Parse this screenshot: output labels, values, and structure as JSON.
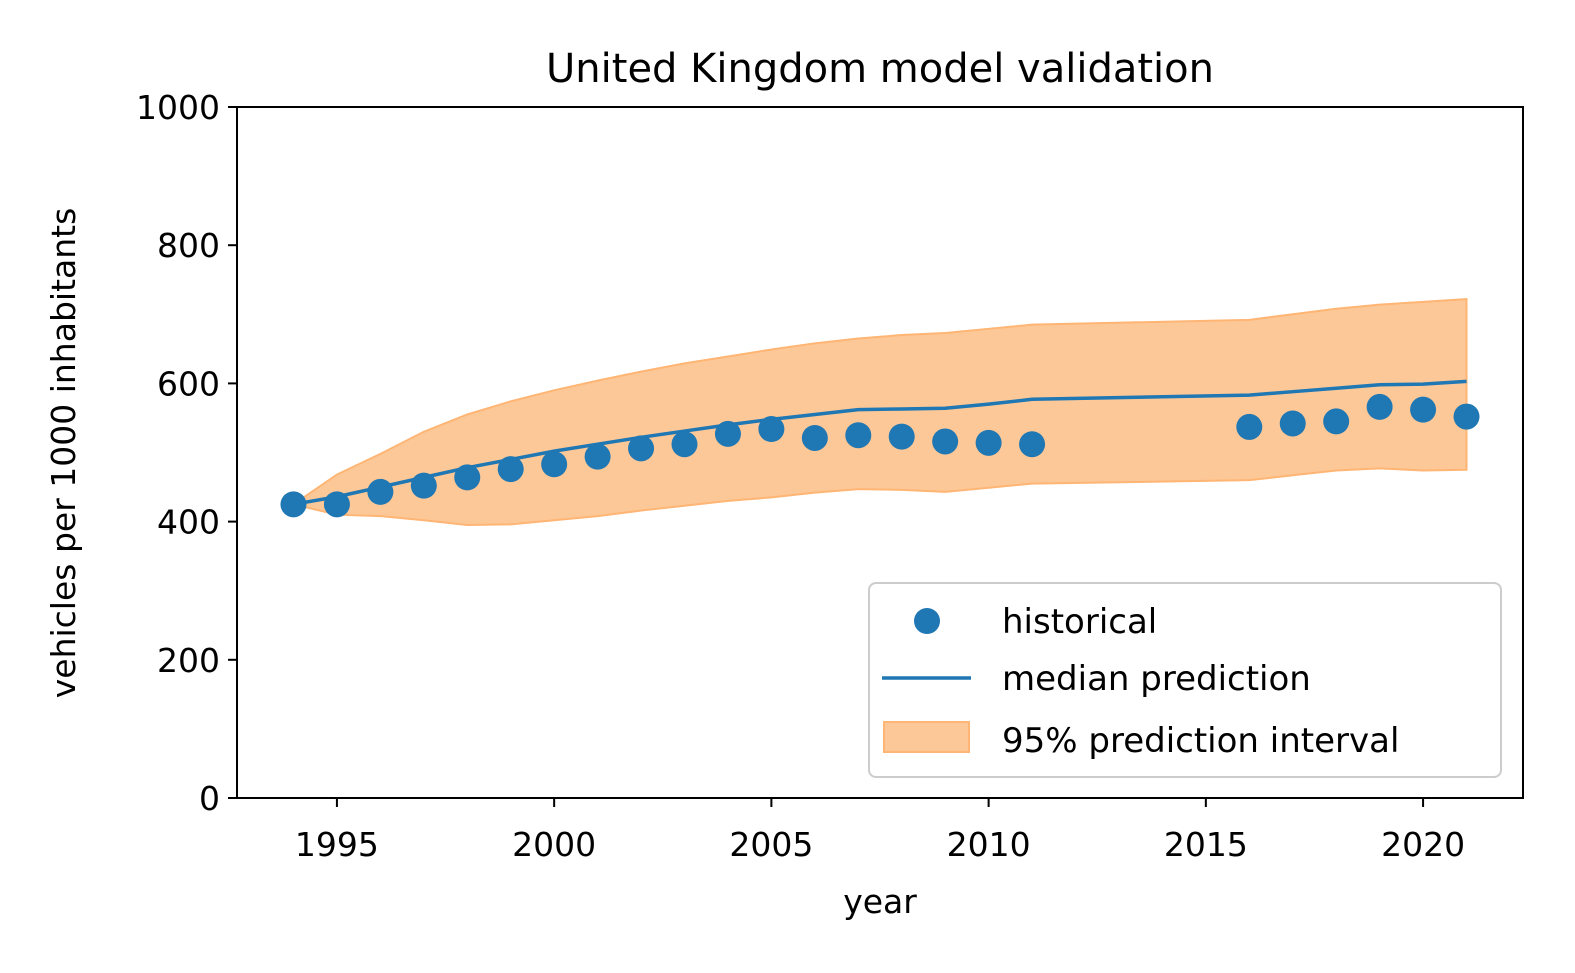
{
  "chart_data": {
    "type": "line",
    "title": "United Kingdom model validation",
    "xlabel": "year",
    "ylabel": "vehicles per 1000 inhabitants",
    "xlim": [
      1992.7,
      2022.3
    ],
    "ylim": [
      0,
      1000
    ],
    "xticks": [
      1995,
      2000,
      2005,
      2010,
      2015,
      2020
    ],
    "yticks": [
      0,
      200,
      400,
      600,
      800,
      1000
    ],
    "grid": false,
    "legend_position": "lower-right",
    "colors": {
      "historical": "#1f77b4",
      "median": "#1f77b4",
      "interval_fill": "#fdc897",
      "interval_edge": "#ffb574",
      "axis": "#000000"
    },
    "historical": {
      "name": "historical",
      "x": [
        1994,
        1995,
        1996,
        1997,
        1998,
        1999,
        2000,
        2001,
        2002,
        2003,
        2004,
        2005,
        2006,
        2007,
        2008,
        2009,
        2010,
        2011,
        2016,
        2017,
        2018,
        2019,
        2020,
        2021
      ],
      "y": [
        425,
        425,
        443,
        452,
        464,
        476,
        483,
        494,
        506,
        512,
        527,
        534,
        521,
        525,
        523,
        516,
        514,
        512,
        537,
        542,
        545,
        566,
        562,
        552
      ]
    },
    "median": {
      "name": "median prediction",
      "x": [
        1994,
        1995,
        1996,
        1997,
        1998,
        1999,
        2000,
        2001,
        2002,
        2003,
        2004,
        2005,
        2006,
        2007,
        2008,
        2009,
        2010,
        2011,
        2016,
        2017,
        2018,
        2019,
        2020,
        2021
      ],
      "y": [
        425,
        436,
        450,
        464,
        478,
        490,
        502,
        512,
        522,
        531,
        540,
        548,
        555,
        562,
        563,
        564,
        570,
        577,
        583,
        588,
        593,
        598,
        599,
        603
      ]
    },
    "interval": {
      "name": "95% prediction interval",
      "x": [
        1994,
        1995,
        1996,
        1997,
        1998,
        1999,
        2000,
        2001,
        2002,
        2003,
        2004,
        2005,
        2006,
        2007,
        2008,
        2009,
        2010,
        2011,
        2016,
        2017,
        2018,
        2019,
        2020,
        2021
      ],
      "lower": [
        425,
        410,
        408,
        402,
        395,
        396,
        402,
        408,
        416,
        423,
        430,
        435,
        442,
        447,
        446,
        443,
        449,
        455,
        460,
        467,
        474,
        477,
        474,
        475
      ],
      "upper": [
        425,
        468,
        498,
        530,
        555,
        574,
        590,
        604,
        617,
        629,
        639,
        649,
        658,
        665,
        670,
        673,
        679,
        685,
        692,
        700,
        708,
        714,
        718,
        722
      ]
    }
  }
}
